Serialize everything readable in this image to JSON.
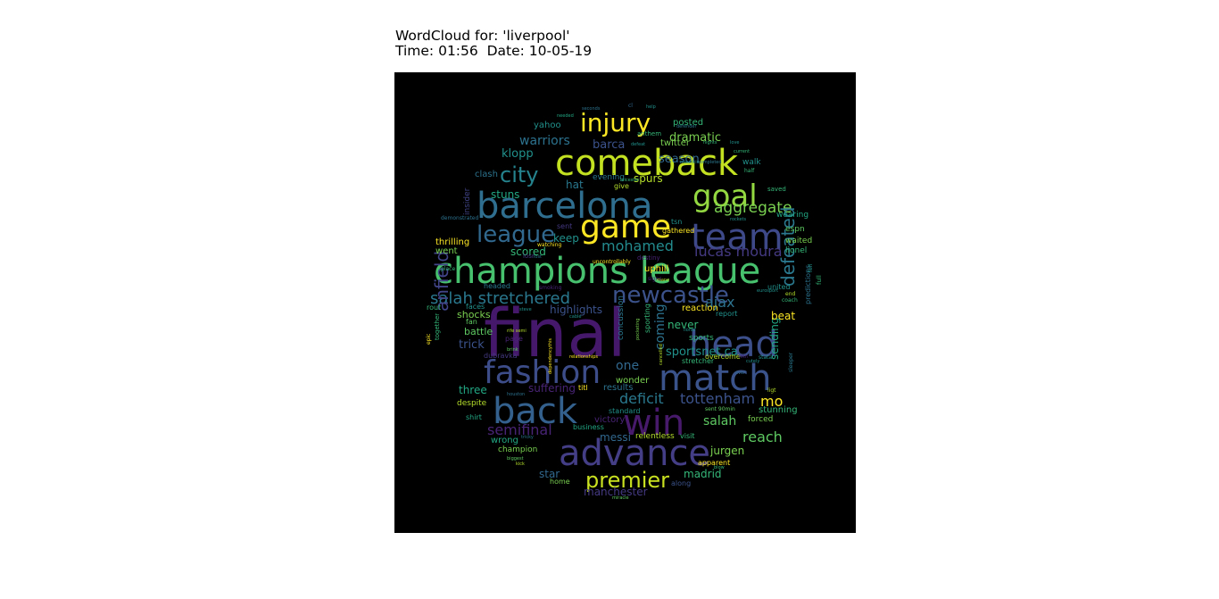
{
  "figure": {
    "title_line1": "WordCloud for: 'liverpool'",
    "title_line2": "Time: 01:56  Date: 10-05-19"
  },
  "chart_data": {
    "type": "wordcloud",
    "background": "#000000",
    "colormap": "viridis",
    "words": [
      {
        "text": "final",
        "color": "#46186b"
      },
      {
        "text": "champions league",
        "color": "#47c16e"
      },
      {
        "text": "barcelona",
        "color": "#2f6e8e"
      },
      {
        "text": "comeback",
        "color": "#c3e021"
      },
      {
        "text": "head",
        "color": "#3c4f8a"
      },
      {
        "text": "match",
        "color": "#3b538b"
      },
      {
        "text": "fashion",
        "color": "#3d4d8a"
      },
      {
        "text": "advance",
        "color": "#433e85"
      },
      {
        "text": "back",
        "color": "#33608d"
      },
      {
        "text": "win",
        "color": "#481a6c"
      },
      {
        "text": "team",
        "color": "#3e4989"
      },
      {
        "text": "game",
        "color": "#fde725"
      },
      {
        "text": "goal",
        "color": "#93d741"
      },
      {
        "text": "injury",
        "color": "#fde725"
      },
      {
        "text": "newcastle",
        "color": "#3b528b"
      },
      {
        "text": "league",
        "color": "#31688e"
      },
      {
        "text": "city",
        "color": "#25838e"
      },
      {
        "text": "premier",
        "color": "#c8e020"
      },
      {
        "text": "aggregate",
        "color": "#7ad151"
      },
      {
        "text": "salah stretchered",
        "color": "#2a788e"
      },
      {
        "text": "mohamed",
        "color": "#238a8d"
      },
      {
        "text": "lucas moura",
        "color": "#443a83"
      },
      {
        "text": "defeated",
        "color": "#2a788e"
      },
      {
        "text": "anfield",
        "color": "#414487"
      },
      {
        "text": "ajax",
        "color": "#2c728e"
      },
      {
        "text": "semifinal",
        "color": "#482475"
      },
      {
        "text": "reach",
        "color": "#5ec962"
      },
      {
        "text": "tottenham",
        "color": "#3b528b"
      },
      {
        "text": "deficit",
        "color": "#2a788e"
      },
      {
        "text": "mo",
        "color": "#fde725"
      },
      {
        "text": "salah",
        "color": "#5ec962"
      },
      {
        "text": "warriors",
        "color": "#2c728e"
      },
      {
        "text": "dramatic",
        "color": "#7ad151"
      },
      {
        "text": "klopp",
        "color": "#21918c"
      },
      {
        "text": "barca",
        "color": "#3b528b"
      },
      {
        "text": "posted",
        "color": "#35b779"
      },
      {
        "text": "stuns",
        "color": "#22a884"
      },
      {
        "text": "spurs",
        "color": "#b5de2b"
      },
      {
        "text": "season",
        "color": "#31688e"
      },
      {
        "text": "hat",
        "color": "#2a788e"
      },
      {
        "text": "keep",
        "color": "#21918c"
      },
      {
        "text": "scored",
        "color": "#35b779"
      },
      {
        "text": "thrilling",
        "color": "#fde725"
      },
      {
        "text": "went",
        "color": "#7ad151"
      },
      {
        "text": "uphill",
        "color": "#fde725"
      },
      {
        "text": "highlights",
        "color": "#3b528b"
      },
      {
        "text": "coming",
        "color": "#2c728e"
      },
      {
        "text": "never",
        "color": "#35b779"
      },
      {
        "text": "sportsnet ca",
        "color": "#21918c"
      },
      {
        "text": "sending",
        "color": "#22a884"
      },
      {
        "text": "beat",
        "color": "#fde725"
      },
      {
        "text": "reaction",
        "color": "#fde725"
      },
      {
        "text": "one",
        "color": "#31688e"
      },
      {
        "text": "trick",
        "color": "#3b528b"
      },
      {
        "text": "battle",
        "color": "#5ec962"
      },
      {
        "text": "shocks",
        "color": "#7ad151"
      },
      {
        "text": "three",
        "color": "#22a884"
      },
      {
        "text": "suffering",
        "color": "#482475"
      },
      {
        "text": "messi",
        "color": "#31688e"
      },
      {
        "text": "madrid",
        "color": "#35b779"
      },
      {
        "text": "jurgen",
        "color": "#7ad151"
      },
      {
        "text": "manchester",
        "color": "#443a83"
      },
      {
        "text": "star",
        "color": "#31688e"
      },
      {
        "text": "victory",
        "color": "#482475"
      },
      {
        "text": "wrong",
        "color": "#22a884"
      },
      {
        "text": "champion",
        "color": "#7ad151"
      },
      {
        "text": "results",
        "color": "#2c728e"
      },
      {
        "text": "wonder",
        "color": "#7ad151"
      },
      {
        "text": "relentless",
        "color": "#b5de2b"
      },
      {
        "text": "stunning",
        "color": "#35b779"
      },
      {
        "text": "forced",
        "color": "#7ad151"
      },
      {
        "text": "twitter",
        "color": "#7ad151"
      },
      {
        "text": "yahoo",
        "color": "#21918c"
      },
      {
        "text": "espn",
        "color": "#5ec962"
      },
      {
        "text": "lionel",
        "color": "#35b779"
      },
      {
        "text": "waited",
        "color": "#7ad151"
      },
      {
        "text": "wearing",
        "color": "#22a884"
      },
      {
        "text": "gathered",
        "color": "#fde725"
      },
      {
        "text": "clash",
        "color": "#2c728e"
      },
      {
        "text": "insider",
        "color": "#414487"
      },
      {
        "text": "evening",
        "color": "#2a788e"
      },
      {
        "text": "walk",
        "color": "#21918c"
      },
      {
        "text": "saved",
        "color": "#35b779"
      },
      {
        "text": "standard",
        "color": "#21918c"
      },
      {
        "text": "business",
        "color": "#22a884"
      },
      {
        "text": "visit",
        "color": "#35b779"
      },
      {
        "text": "apparent",
        "color": "#fde725"
      },
      {
        "text": "along",
        "color": "#3b528b"
      },
      {
        "text": "home",
        "color": "#7ad151"
      },
      {
        "text": "despite",
        "color": "#b5de2b"
      },
      {
        "text": "shirt",
        "color": "#22a884"
      },
      {
        "text": "fan",
        "color": "#5ec962"
      },
      {
        "text": "faces",
        "color": "#21918c"
      },
      {
        "text": "rout",
        "color": "#35b779"
      },
      {
        "text": "united",
        "color": "#21918c"
      },
      {
        "text": "overcome",
        "color": "#b5de2b"
      },
      {
        "text": "stretcher",
        "color": "#35b779"
      },
      {
        "text": "report",
        "color": "#21918c"
      },
      {
        "text": "sports",
        "color": "#35b779"
      },
      {
        "text": "concussion",
        "color": "#2a788e"
      },
      {
        "text": "page",
        "color": "#482475"
      },
      {
        "text": "dubravka",
        "color": "#443a83"
      },
      {
        "text": "titl",
        "color": "#fde725"
      },
      {
        "text": "predictions",
        "color": "#2c728e"
      },
      {
        "text": "sporting",
        "color": "#35b779"
      },
      {
        "text": "tsn",
        "color": "#21918c"
      },
      {
        "text": "give",
        "color": "#b5de2b"
      },
      {
        "text": "headed",
        "color": "#2a788e"
      },
      {
        "text": "anthem",
        "color": "#35b779"
      },
      {
        "text": "losr",
        "color": "#443a83"
      },
      {
        "text": "uncontrollably",
        "color": "#fde725"
      },
      {
        "text": "sent",
        "color": "#443a83"
      },
      {
        "text": "destiny",
        "color": "#482475"
      },
      {
        "text": "defeat",
        "color": "#21918c"
      },
      {
        "text": "together",
        "color": "#35b779"
      },
      {
        "text": "epic",
        "color": "#fde725"
      },
      {
        "text": "biggest",
        "color": "#5ec962"
      },
      {
        "text": "kick",
        "color": "#b5de2b"
      },
      {
        "text": "houston",
        "color": "#2c728e"
      },
      {
        "text": "rockets",
        "color": "#21918c"
      },
      {
        "text": "miracle",
        "color": "#5ec962"
      },
      {
        "text": "relationships",
        "color": "#fde725"
      },
      {
        "text": "dependencythis",
        "color": "#fde725"
      },
      {
        "text": "eurosport",
        "color": "#21918c"
      },
      {
        "text": "watching",
        "color": "#fde725"
      },
      {
        "text": "leicester",
        "color": "#35b779"
      },
      {
        "text": "mauricio",
        "color": "#21918c"
      },
      {
        "text": "completed",
        "color": "#2a788e"
      },
      {
        "text": "needed",
        "color": "#22a884"
      },
      {
        "text": "seconds",
        "color": "#2c728e"
      },
      {
        "text": "help",
        "color": "#21918c"
      },
      {
        "text": "cl",
        "color": "#31688e"
      },
      {
        "text": "nights",
        "color": "#35b779"
      },
      {
        "text": "love",
        "color": "#21918c"
      },
      {
        "text": "half",
        "color": "#35b779"
      },
      {
        "text": "defender",
        "color": "#2a788e"
      },
      {
        "text": "ligt",
        "color": "#b5de2b"
      },
      {
        "text": "coach",
        "color": "#35b779"
      },
      {
        "text": "fell",
        "color": "#21918c"
      },
      {
        "text": "full",
        "color": "#35b779"
      },
      {
        "text": "blow",
        "color": "#35b779"
      },
      {
        "text": "lost",
        "color": "#2c728e"
      },
      {
        "text": "end",
        "color": "#b5de2b"
      },
      {
        "text": "ever",
        "color": "#31688e"
      },
      {
        "text": "rife semi",
        "color": "#b5de2b"
      },
      {
        "text": "brink",
        "color": "#5ec962"
      },
      {
        "text": "tricky",
        "color": "#2a788e"
      },
      {
        "text": "lionel",
        "color": "#21918c"
      },
      {
        "text": "stata",
        "color": "#21918c"
      },
      {
        "text": "fifth",
        "color": "#482475"
      },
      {
        "text": "cancelled",
        "color": "#b5de2b"
      },
      {
        "text": "sleeper",
        "color": "#2a788e"
      },
      {
        "text": "current",
        "color": "#35b779"
      },
      {
        "text": "sent 90min",
        "color": "#5ec962"
      },
      {
        "text": "pocketing",
        "color": "#7ad151"
      },
      {
        "text": "cable",
        "color": "#21918c"
      },
      {
        "text": "steve",
        "color": "#21918c"
      },
      {
        "text": "demonstrated",
        "color": "#2c728e"
      },
      {
        "text": "place",
        "color": "#35b779"
      },
      {
        "text": "signs",
        "color": "#482475"
      },
      {
        "text": "smoking",
        "color": "#482475"
      },
      {
        "text": "cutely",
        "color": "#21918c"
      },
      {
        "text": "mane",
        "color": "#b5de2b"
      }
    ]
  }
}
